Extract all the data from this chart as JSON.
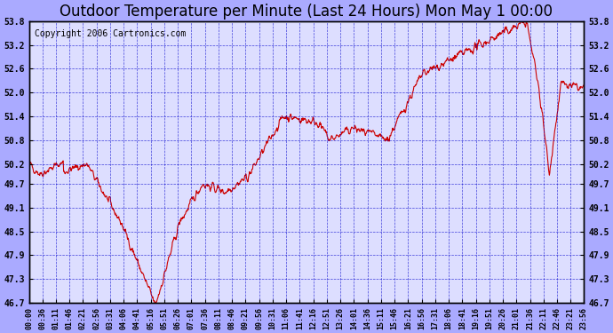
{
  "title": "Outdoor Temperature per Minute (Last 24 Hours) Mon May 1 00:00",
  "copyright": "Copyright 2006 Cartronics.com",
  "ylabel_right": "",
  "yticks": [
    46.7,
    47.3,
    47.9,
    48.5,
    49.1,
    49.7,
    50.2,
    50.8,
    51.4,
    52.0,
    52.6,
    53.2,
    53.8
  ],
  "ymin": 46.7,
  "ymax": 53.8,
  "xtick_labels": [
    "00:00",
    "00:36",
    "01:11",
    "01:46",
    "02:21",
    "02:56",
    "03:31",
    "04:06",
    "04:41",
    "05:16",
    "05:51",
    "06:26",
    "07:01",
    "07:36",
    "08:11",
    "08:46",
    "09:21",
    "09:56",
    "10:31",
    "11:06",
    "11:41",
    "12:16",
    "12:51",
    "13:26",
    "14:01",
    "14:36",
    "15:11",
    "15:46",
    "16:21",
    "16:56",
    "17:31",
    "18:06",
    "18:41",
    "19:16",
    "19:51",
    "20:26",
    "21:01",
    "21:36",
    "22:11",
    "22:46",
    "23:21",
    "23:56"
  ],
  "line_color": "#cc0000",
  "bg_color": "#aaaaff",
  "plot_bg": "#dddeff",
  "grid_color": "#0000cc",
  "title_color": "#000000",
  "border_color": "#000000",
  "title_fontsize": 12,
  "copyright_fontsize": 7
}
